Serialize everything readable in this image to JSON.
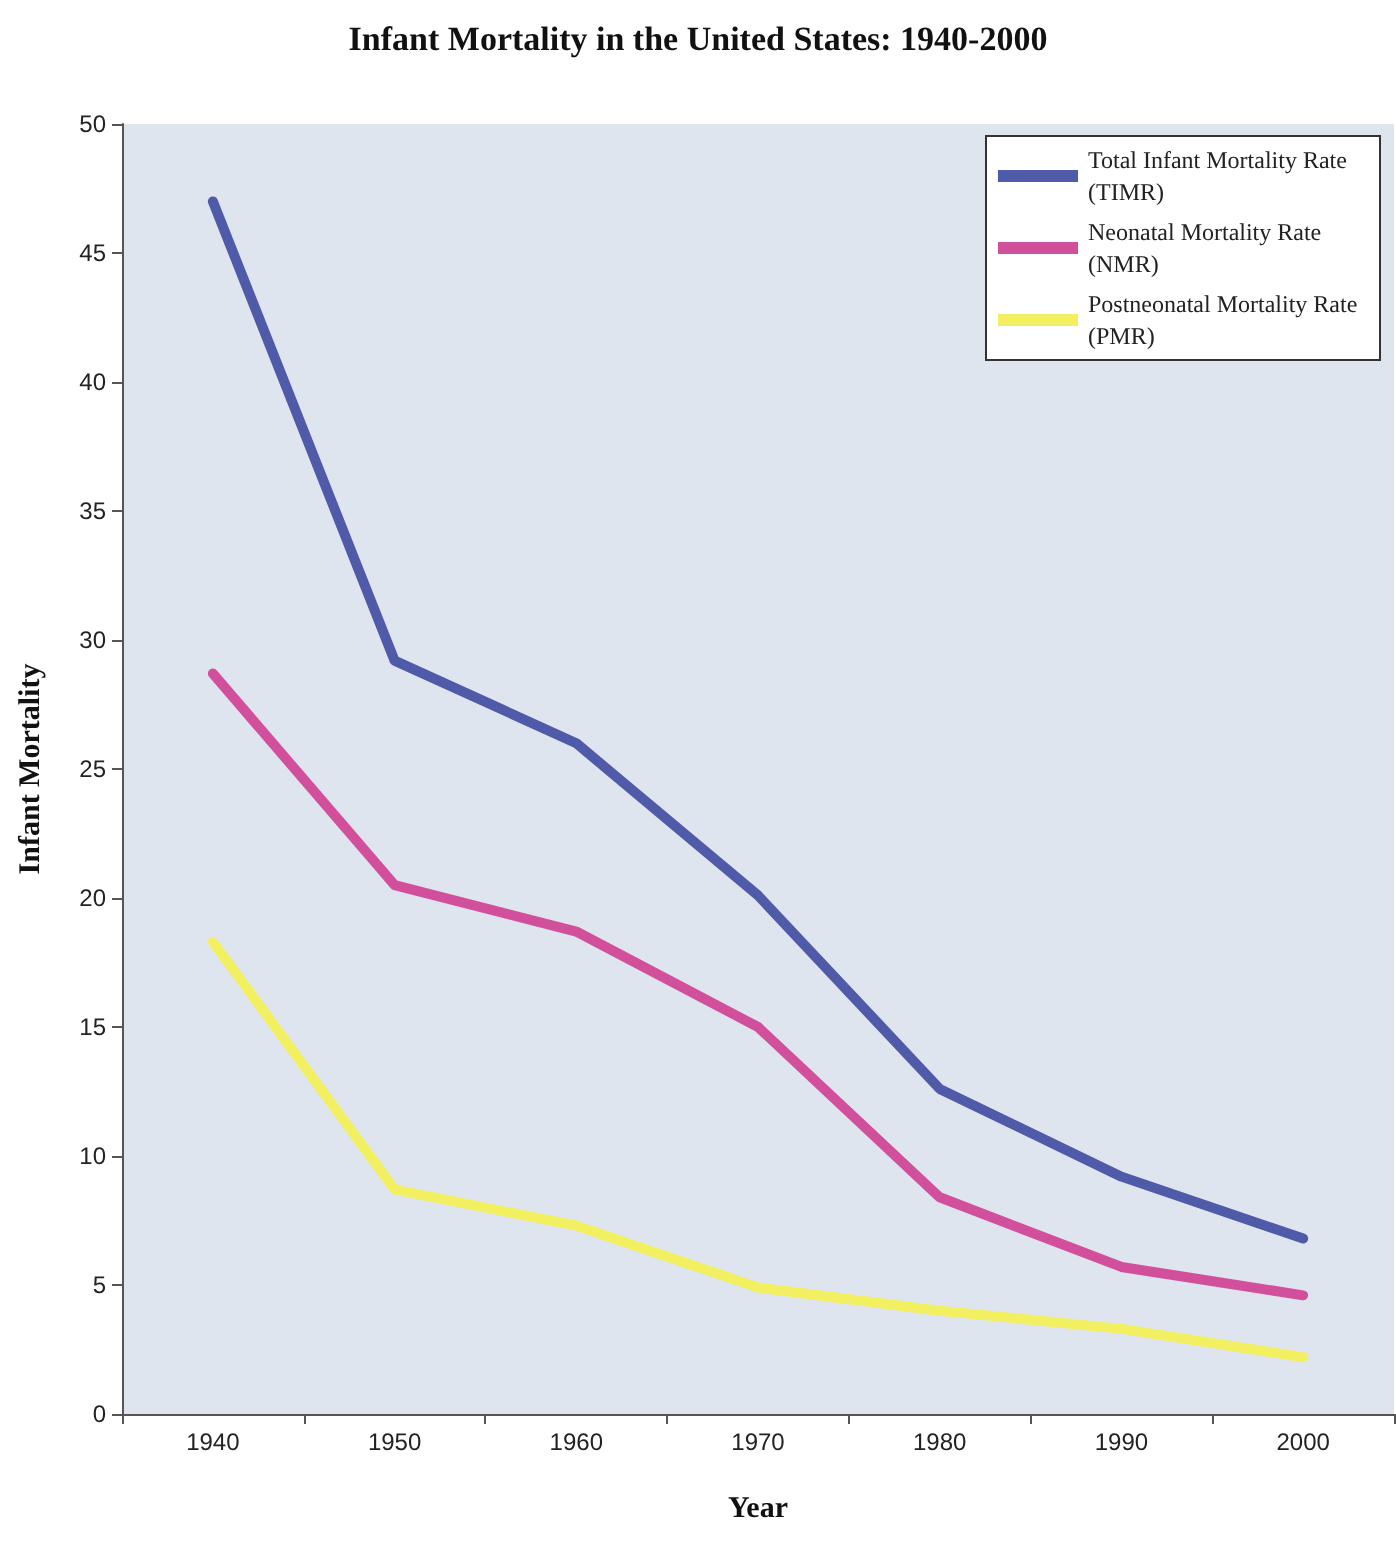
{
  "chart_data": {
    "type": "line",
    "title": "Infant Mortality in the United States: 1940-2000",
    "xlabel": "Year",
    "ylabel": "Infant Mortality",
    "categories": [
      "1940",
      "1950",
      "1960",
      "1970",
      "1980",
      "1990",
      "2000"
    ],
    "series": [
      {
        "name": "Total Infant Mortality Rate (TIMR)",
        "color": "#4f5aa8",
        "values": [
          47.0,
          29.2,
          26.0,
          20.1,
          12.6,
          9.2,
          6.8
        ]
      },
      {
        "name": "Neonatal Mortality Rate (NMR)",
        "color": "#d24f9c",
        "values": [
          28.7,
          20.5,
          18.7,
          15.0,
          8.4,
          5.7,
          4.6
        ]
      },
      {
        "name": "Postneonatal Mortality Rate (PMR)",
        "color": "#f2f060",
        "values": [
          18.3,
          8.7,
          7.3,
          4.9,
          4.0,
          3.3,
          2.2
        ]
      }
    ],
    "ylim": [
      0,
      50
    ],
    "yticks": [
      0,
      5,
      10,
      15,
      20,
      25,
      30,
      35,
      40,
      45,
      50
    ],
    "grid": false,
    "legend": "top right",
    "marker": "none",
    "line_style": "solid"
  }
}
